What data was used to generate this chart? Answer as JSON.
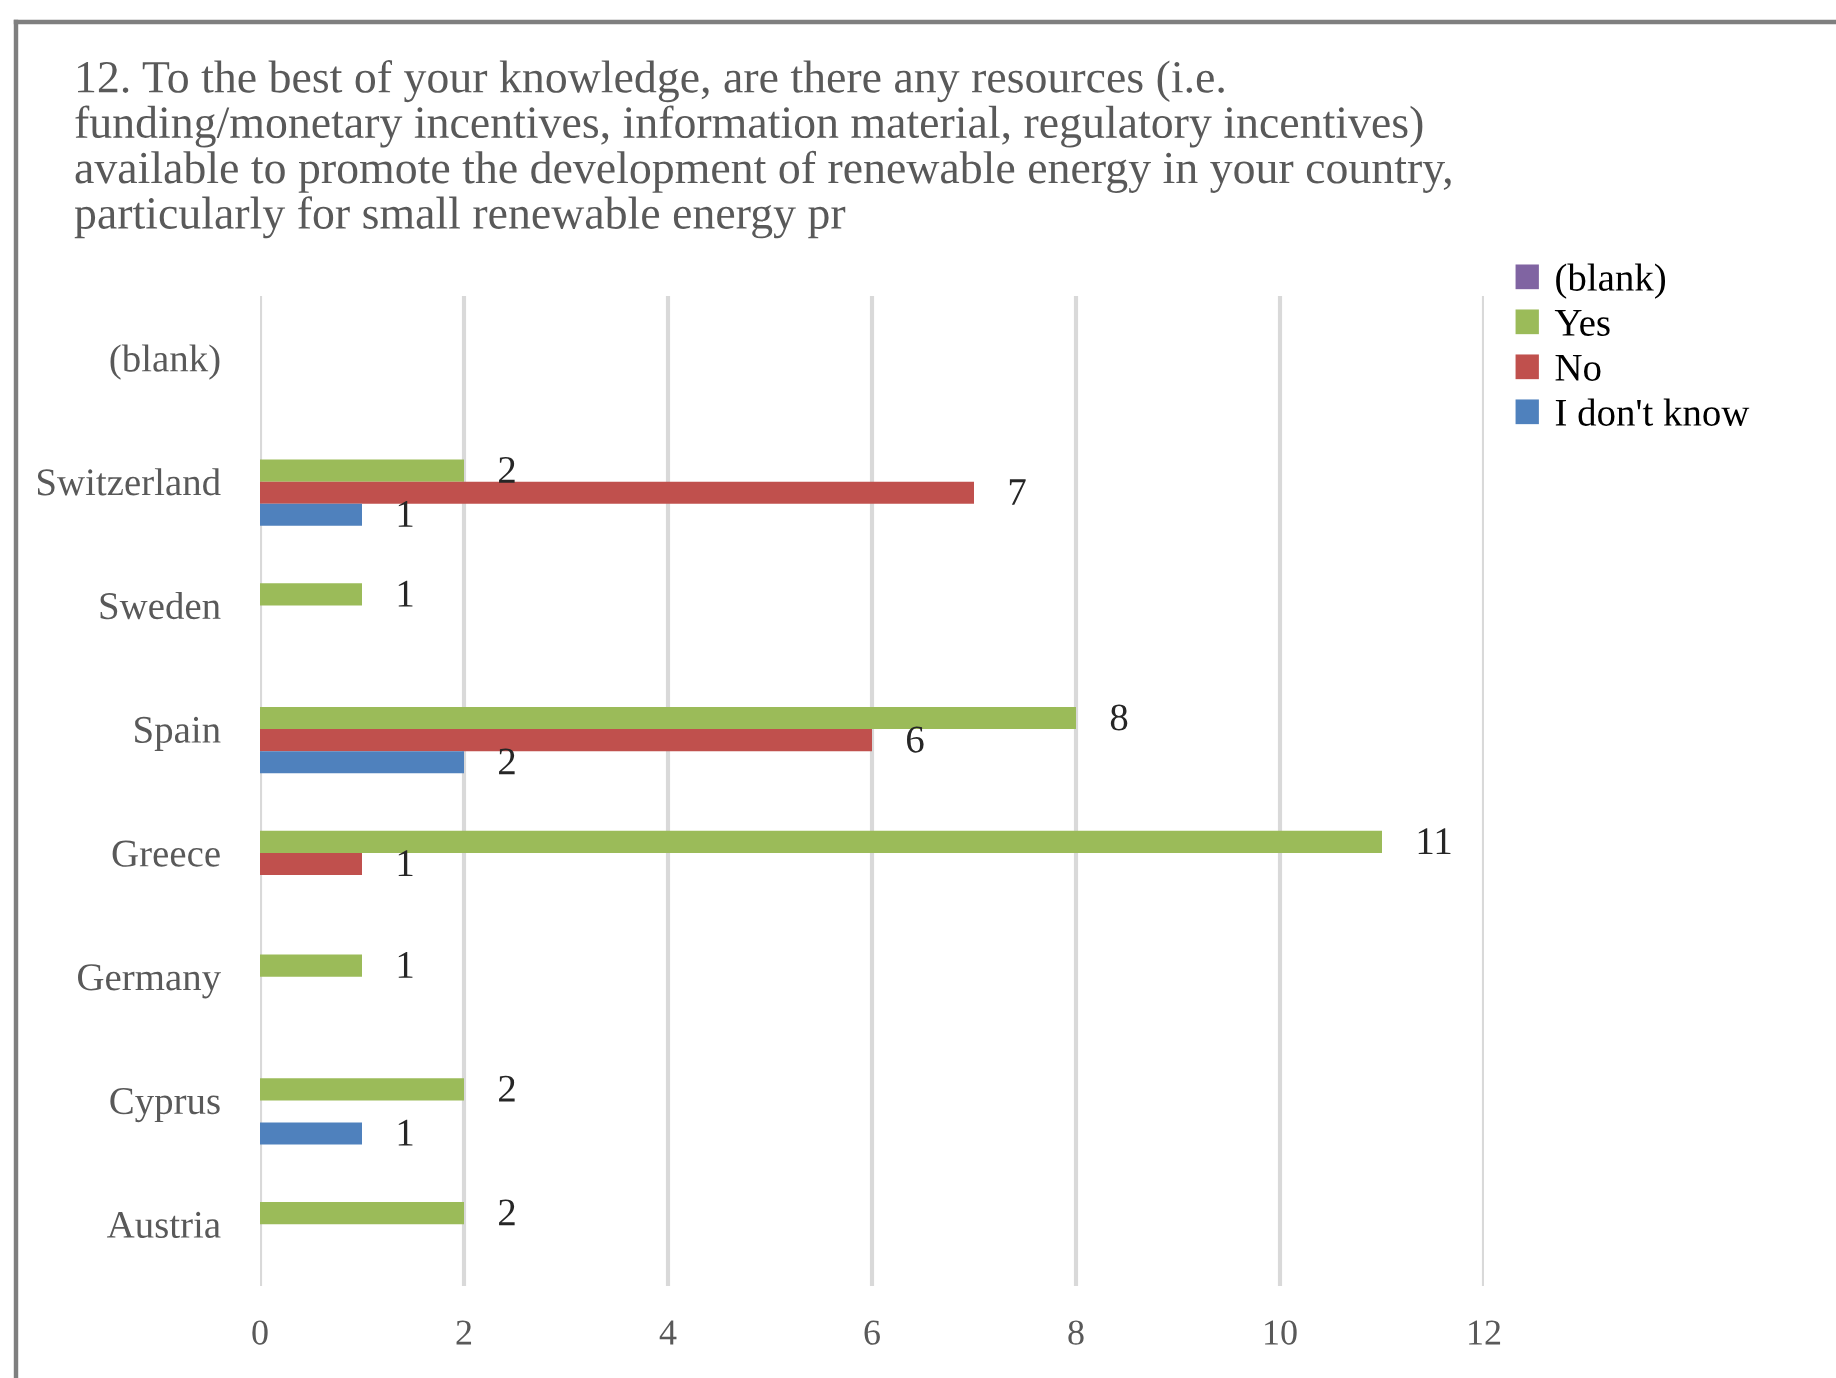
{
  "chart_data": {
    "type": "bar",
    "orientation": "horizontal",
    "title": "12. To the best of your knowledge, are there any resources (i.e.\nfunding/monetary incentives, information material, regulatory incentives)\navailable to promote the development of renewable energy in your country,\nparticularly for small renewable energy pr",
    "categories": [
      "(blank)",
      "Switzerland",
      "Sweden",
      "Spain",
      "Greece",
      "Germany",
      "Cyprus",
      "Austria"
    ],
    "series": [
      {
        "name": "(blank)",
        "color": "#8064a2",
        "values": [
          null,
          null,
          null,
          null,
          null,
          null,
          null,
          null
        ]
      },
      {
        "name": "Yes",
        "color": "#9bbb59",
        "values": [
          null,
          2,
          1,
          8,
          11,
          1,
          2,
          2
        ]
      },
      {
        "name": "No",
        "color": "#c0504d",
        "values": [
          null,
          7,
          null,
          6,
          1,
          null,
          null,
          null
        ]
      },
      {
        "name": "I don't know",
        "color": "#4f81bd",
        "values": [
          null,
          1,
          null,
          2,
          null,
          null,
          1,
          null
        ]
      }
    ],
    "xlim": [
      0,
      12
    ],
    "xticks": [
      0,
      2,
      4,
      6,
      8,
      10,
      12
    ],
    "grid": "x",
    "legend": "top right",
    "data_labels": true
  }
}
